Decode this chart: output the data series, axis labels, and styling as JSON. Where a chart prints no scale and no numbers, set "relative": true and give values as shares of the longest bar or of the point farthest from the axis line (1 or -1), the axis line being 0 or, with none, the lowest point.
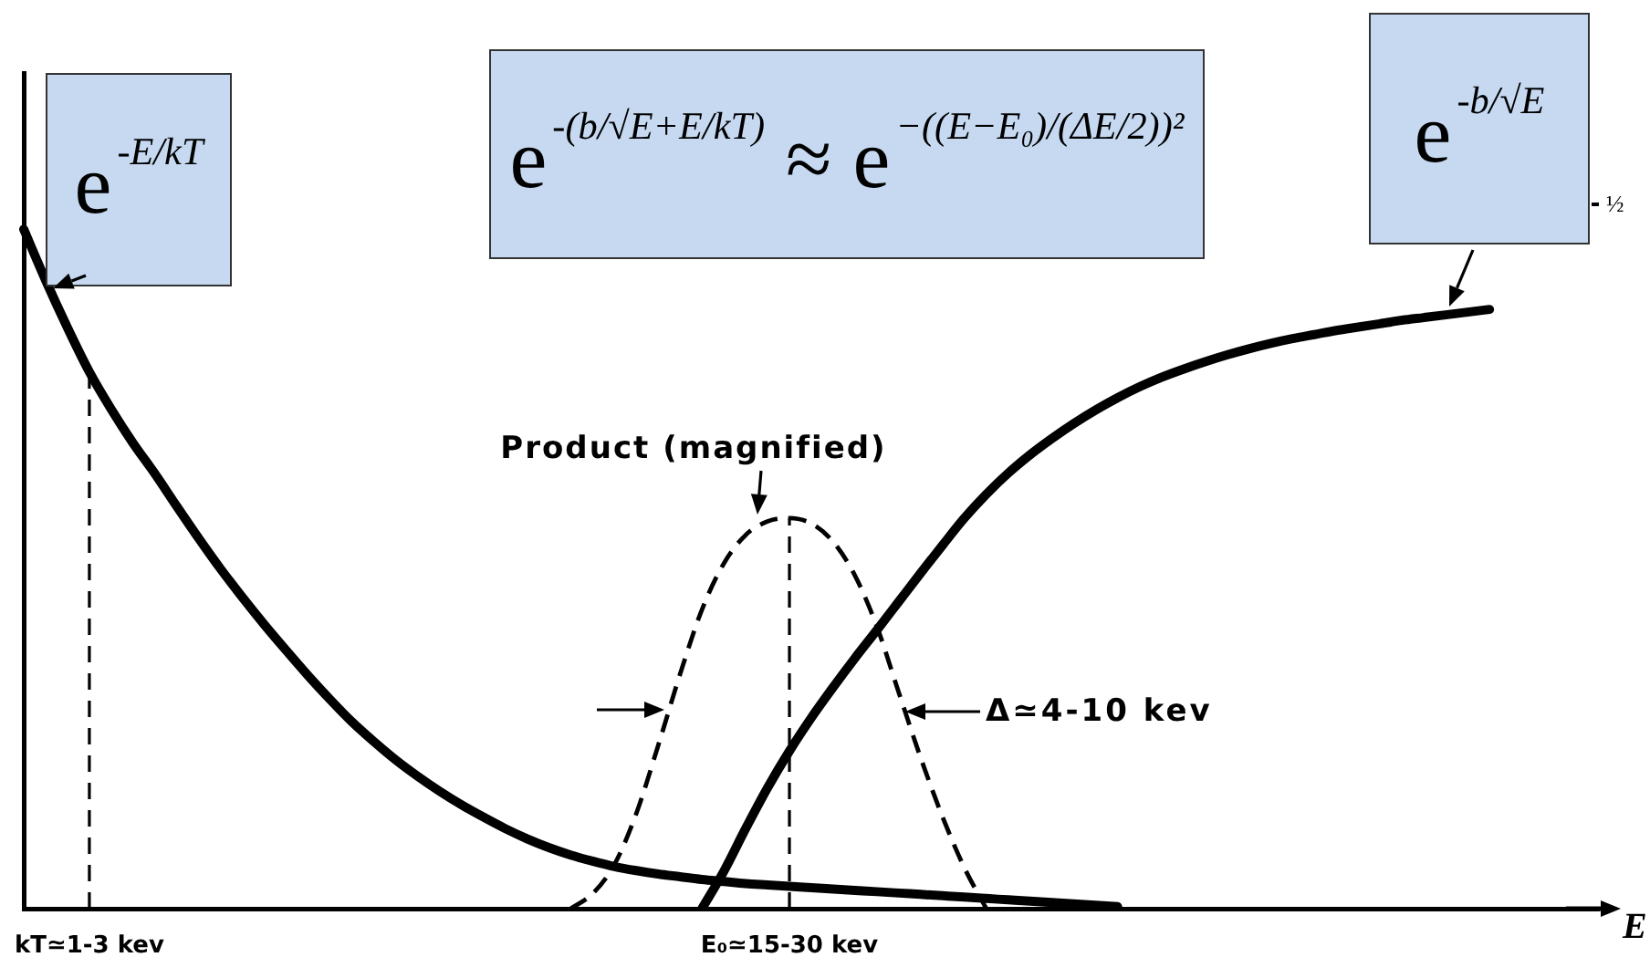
{
  "chart_data": {
    "type": "line",
    "relative": true,
    "xlabel": "E",
    "tick_labels": "x",
    "categories": [
      null,
      null,
      null,
      "kT≃1-3 kev",
      null,
      null,
      null,
      null,
      null,
      null,
      null,
      null,
      null,
      null,
      null,
      null,
      null,
      null,
      null,
      null,
      null,
      null,
      null,
      null,
      null,
      null,
      null,
      null,
      null,
      null,
      null,
      null,
      null,
      null,
      null,
      "E₀≃15-30 kev",
      null,
      null,
      null,
      null,
      null,
      null,
      null,
      null,
      null,
      null,
      null,
      null,
      null,
      null,
      null,
      null,
      null,
      null,
      null,
      null,
      null,
      null,
      null,
      null,
      null,
      null,
      null,
      null,
      null,
      null,
      null,
      null,
      null,
      null,
      null,
      null,
      null
    ],
    "series": [
      {
        "name": "e$^{-E/kT}$",
        "color": "#000000",
        "values": [
          1,
          0.925,
          0.855,
          0.79,
          0.735,
          0.685,
          0.64,
          0.592,
          0.545,
          0.5,
          0.458,
          0.418,
          0.38,
          0.343,
          0.308,
          0.275,
          0.246,
          0.219,
          0.195,
          0.173,
          0.153,
          0.135,
          0.118,
          0.103,
          0.09,
          0.079,
          0.07,
          0.062,
          0.056,
          0.051,
          0.047,
          0.043,
          0.04,
          0.037,
          0.035,
          0.033,
          0.031,
          0.029,
          0.027,
          0.025,
          0.023,
          0.021,
          0.019,
          0.017,
          0.015,
          0.013,
          0.011,
          0.009,
          0.007,
          0.005,
          0.003,
          null,
          null,
          null,
          null,
          null,
          null,
          null,
          null,
          null,
          null,
          null,
          null,
          null,
          null,
          null,
          null,
          null,
          null,
          null,
          null,
          null,
          null
        ]
      },
      {
        "name": "e$^{-b/√E}$",
        "color": "#000000",
        "values": [
          null,
          null,
          null,
          null,
          null,
          null,
          null,
          null,
          null,
          null,
          null,
          null,
          null,
          null,
          null,
          null,
          null,
          null,
          null,
          null,
          null,
          null,
          null,
          null,
          null,
          null,
          null,
          null,
          null,
          null,
          null,
          0,
          0.055,
          0.118,
          0.178,
          0.232,
          0.281,
          0.326,
          0.369,
          0.41,
          0.452,
          0.494,
          0.535,
          0.575,
          0.61,
          0.641,
          0.668,
          0.692,
          0.714,
          0.734,
          0.752,
          0.768,
          0.782,
          0.794,
          0.805,
          0.815,
          0.824,
          0.832,
          0.839,
          0.845,
          0.851,
          0.856,
          0.861,
          0.866,
          0.87,
          0.874,
          0.878,
          0.882,
          null,
          null,
          null,
          null,
          null
        ]
      },
      {
        "name": "Product (magnified)",
        "color": "#000000",
        "line_style": "dashed",
        "values": [
          null,
          null,
          null,
          null,
          null,
          null,
          null,
          null,
          null,
          null,
          null,
          null,
          null,
          null,
          null,
          null,
          null,
          null,
          null,
          null,
          null,
          null,
          null,
          null,
          null,
          0,
          0.022,
          0.065,
          0.14,
          0.24,
          0.345,
          0.44,
          0.508,
          0.55,
          0.57,
          0.575,
          0.567,
          0.54,
          0.49,
          0.415,
          0.318,
          0.222,
          0.135,
          0.06,
          0,
          null,
          null,
          null,
          null,
          null,
          null,
          null,
          null,
          null,
          null,
          null,
          null,
          null,
          null,
          null,
          null,
          null,
          null,
          null,
          null,
          null,
          null,
          null,
          null,
          null,
          null,
          null,
          null
        ]
      }
    ],
    "ref_lines": [
      {
        "axis": "x",
        "value": "kT≃1-3 kev",
        "line_style": "dashed"
      },
      {
        "axis": "x",
        "value": "E₀≃15-30 kev",
        "line_style": "dashed"
      }
    ],
    "annotations": [
      "e$^{-(b/√E+E/kT)}$ ≈ e$^{−((E−E₀)/(ΔE/2))²}$",
      "Δ≃4-10 kev",
      "½"
    ]
  }
}
